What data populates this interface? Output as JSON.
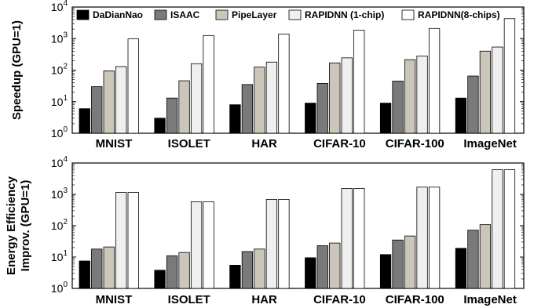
{
  "chart_data": [
    {
      "type": "bar",
      "yscale": "log",
      "ylim": [
        1,
        10000
      ],
      "ylabel": "Speedup (GPU=1)",
      "categories": [
        "MNIST",
        "ISOLET",
        "HAR",
        "CIFAR-10",
        "CIFAR-100",
        "ImageNet"
      ],
      "yticks": [
        {
          "base": "10",
          "exp": "0"
        },
        {
          "base": "10",
          "exp": "1"
        },
        {
          "base": "10",
          "exp": "2"
        },
        {
          "base": "10",
          "exp": "3"
        },
        {
          "base": "10",
          "exp": "4"
        }
      ],
      "legend_position": "top",
      "series": [
        {
          "name": "DaDianNao",
          "color": "#000000",
          "values": [
            6,
            3,
            8,
            9,
            9,
            13
          ]
        },
        {
          "name": "ISAAC",
          "color": "#7a7a7a",
          "values": [
            30,
            13,
            35,
            38,
            45,
            65
          ]
        },
        {
          "name": "PipeLayer",
          "color": "#cbc6b9",
          "values": [
            95,
            46,
            125,
            170,
            215,
            400
          ]
        },
        {
          "name": "RAPIDNN (1-chip)",
          "color": "#efefef",
          "values": [
            130,
            160,
            180,
            245,
            280,
            540
          ]
        },
        {
          "name": "RAPIDNN(8-chips)",
          "color": "#ffffff",
          "values": [
            980,
            1250,
            1400,
            1850,
            2100,
            4300
          ]
        }
      ]
    },
    {
      "type": "bar",
      "yscale": "log",
      "ylim": [
        1,
        10000
      ],
      "ylabel_lines": [
        "Energy Efficiency",
        "Improv. (GPU=1)"
      ],
      "categories": [
        "MNIST",
        "ISOLET",
        "HAR",
        "CIFAR-10",
        "CIFAR-100",
        "ImageNet"
      ],
      "yticks": [
        {
          "base": "10",
          "exp": "0"
        },
        {
          "base": "10",
          "exp": "1"
        },
        {
          "base": "10",
          "exp": "2"
        },
        {
          "base": "10",
          "exp": "3"
        },
        {
          "base": "10",
          "exp": "4"
        }
      ],
      "series": [
        {
          "name": "DaDianNao",
          "color": "#000000",
          "values": [
            7.5,
            3.8,
            5.5,
            9.5,
            12,
            19
          ]
        },
        {
          "name": "ISAAC",
          "color": "#7a7a7a",
          "values": [
            18,
            11,
            15,
            23,
            35,
            72
          ]
        },
        {
          "name": "PipeLayer",
          "color": "#cbc6b9",
          "values": [
            21,
            14,
            18,
            28,
            47,
            108
          ]
        },
        {
          "name": "RAPIDNN (1-chip)",
          "color": "#efefef",
          "values": [
            1150,
            580,
            690,
            1550,
            1700,
            6100
          ]
        },
        {
          "name": "RAPIDNN(8-chips)",
          "color": "#ffffff",
          "values": [
            1150,
            580,
            690,
            1550,
            1700,
            6100
          ]
        }
      ]
    }
  ]
}
